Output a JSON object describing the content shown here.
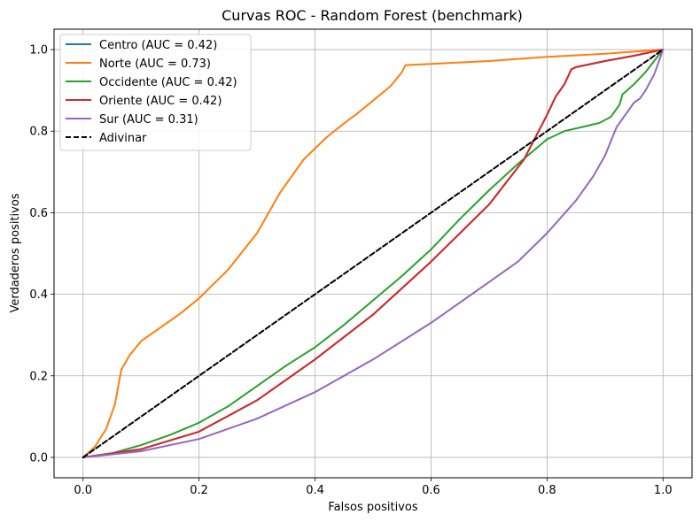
{
  "chart_data": {
    "type": "line",
    "title": "Curvas ROC - Random Forest (benchmark)",
    "xlabel": "Falsos positivos",
    "ylabel": "Verdaderos positivos",
    "xlim": [
      -0.05,
      1.05
    ],
    "ylim": [
      -0.05,
      1.05
    ],
    "xticks": [
      0.0,
      0.2,
      0.4,
      0.6,
      0.8,
      1.0
    ],
    "yticks": [
      0.0,
      0.2,
      0.4,
      0.6,
      0.8,
      1.0
    ],
    "tick_labels_x": [
      "0.0",
      "0.2",
      "0.4",
      "0.6",
      "0.8",
      "1.0"
    ],
    "tick_labels_y": [
      "0.0",
      "0.2",
      "0.4",
      "0.6",
      "0.8",
      "1.0"
    ],
    "grid": true,
    "legend_position": "top-left",
    "series": [
      {
        "name": "Centro (AUC = 0.42)",
        "color": "#1f77b4",
        "dash": "solid",
        "points": [
          [
            0,
            0
          ],
          [
            0.1,
            0.02
          ],
          [
            0.2,
            0.063
          ],
          [
            0.3,
            0.14
          ],
          [
            0.4,
            0.24
          ],
          [
            0.5,
            0.35
          ],
          [
            0.6,
            0.48
          ],
          [
            0.7,
            0.62
          ],
          [
            0.76,
            0.73
          ],
          [
            0.8,
            0.84
          ],
          [
            0.815,
            0.885
          ],
          [
            0.83,
            0.915
          ],
          [
            0.842,
            0.952
          ],
          [
            0.85,
            0.957
          ],
          [
            0.9,
            0.972
          ],
          [
            0.95,
            0.985
          ],
          [
            1,
            1
          ]
        ]
      },
      {
        "name": "Norte (AUC = 0.73)",
        "color": "#ff7f0e",
        "dash": "solid",
        "points": [
          [
            0,
            0
          ],
          [
            0.02,
            0.025
          ],
          [
            0.04,
            0.07
          ],
          [
            0.055,
            0.13
          ],
          [
            0.066,
            0.215
          ],
          [
            0.08,
            0.25
          ],
          [
            0.1,
            0.285
          ],
          [
            0.13,
            0.315
          ],
          [
            0.17,
            0.355
          ],
          [
            0.2,
            0.39
          ],
          [
            0.25,
            0.46
          ],
          [
            0.3,
            0.55
          ],
          [
            0.34,
            0.65
          ],
          [
            0.38,
            0.73
          ],
          [
            0.42,
            0.785
          ],
          [
            0.46,
            0.83
          ],
          [
            0.47,
            0.84
          ],
          [
            0.5,
            0.875
          ],
          [
            0.53,
            0.91
          ],
          [
            0.55,
            0.945
          ],
          [
            0.556,
            0.962
          ],
          [
            0.6,
            0.965
          ],
          [
            0.7,
            0.972
          ],
          [
            0.8,
            0.982
          ],
          [
            0.9,
            0.99
          ],
          [
            1,
            1
          ]
        ]
      },
      {
        "name": "Occidente (AUC = 0.42)",
        "color": "#2ca02c",
        "dash": "solid",
        "points": [
          [
            0,
            0
          ],
          [
            0.05,
            0.01
          ],
          [
            0.1,
            0.03
          ],
          [
            0.15,
            0.055
          ],
          [
            0.2,
            0.085
          ],
          [
            0.25,
            0.125
          ],
          [
            0.3,
            0.175
          ],
          [
            0.35,
            0.225
          ],
          [
            0.4,
            0.27
          ],
          [
            0.45,
            0.325
          ],
          [
            0.5,
            0.385
          ],
          [
            0.55,
            0.445
          ],
          [
            0.6,
            0.51
          ],
          [
            0.65,
            0.585
          ],
          [
            0.7,
            0.655
          ],
          [
            0.75,
            0.72
          ],
          [
            0.8,
            0.78
          ],
          [
            0.83,
            0.8
          ],
          [
            0.86,
            0.81
          ],
          [
            0.89,
            0.82
          ],
          [
            0.91,
            0.835
          ],
          [
            0.925,
            0.865
          ],
          [
            0.93,
            0.89
          ],
          [
            0.95,
            0.915
          ],
          [
            0.97,
            0.945
          ],
          [
            1,
            1
          ]
        ]
      },
      {
        "name": "Oriente (AUC = 0.42)",
        "color": "#d62728",
        "dash": "solid",
        "points": [
          [
            0,
            0
          ],
          [
            0.1,
            0.02
          ],
          [
            0.2,
            0.063
          ],
          [
            0.3,
            0.14
          ],
          [
            0.4,
            0.24
          ],
          [
            0.5,
            0.35
          ],
          [
            0.6,
            0.48
          ],
          [
            0.7,
            0.62
          ],
          [
            0.76,
            0.73
          ],
          [
            0.8,
            0.84
          ],
          [
            0.815,
            0.885
          ],
          [
            0.83,
            0.915
          ],
          [
            0.842,
            0.952
          ],
          [
            0.85,
            0.957
          ],
          [
            0.9,
            0.972
          ],
          [
            0.95,
            0.985
          ],
          [
            1,
            1
          ]
        ]
      },
      {
        "name": "Sur (AUC = 0.31)",
        "color": "#9467bd",
        "dash": "solid",
        "points": [
          [
            0,
            0
          ],
          [
            0.1,
            0.015
          ],
          [
            0.2,
            0.045
          ],
          [
            0.3,
            0.095
          ],
          [
            0.4,
            0.16
          ],
          [
            0.5,
            0.24
          ],
          [
            0.6,
            0.33
          ],
          [
            0.7,
            0.43
          ],
          [
            0.75,
            0.48
          ],
          [
            0.8,
            0.55
          ],
          [
            0.85,
            0.63
          ],
          [
            0.88,
            0.69
          ],
          [
            0.9,
            0.74
          ],
          [
            0.92,
            0.81
          ],
          [
            0.94,
            0.85
          ],
          [
            0.95,
            0.87
          ],
          [
            0.96,
            0.88
          ],
          [
            0.97,
            0.9
          ],
          [
            0.985,
            0.94
          ],
          [
            1,
            1
          ]
        ]
      },
      {
        "name": "Adivinar",
        "color": "#000000",
        "dash": "dashed",
        "points": [
          [
            0,
            0
          ],
          [
            1,
            1
          ]
        ]
      }
    ]
  }
}
